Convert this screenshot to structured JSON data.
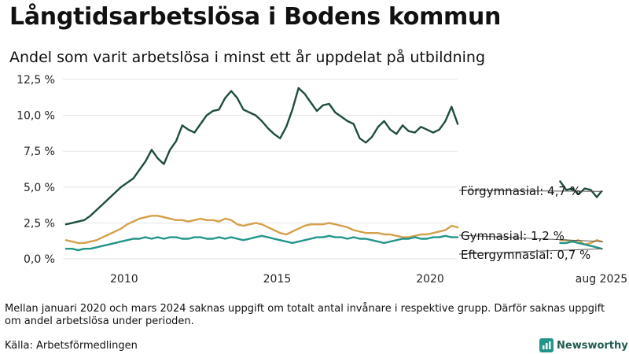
{
  "title": "Långtidsarbetslösa i Bodens kommun",
  "subtitle": "Andel som varit arbetslösa i minst ett år uppdelat på utbildning",
  "note": "Mellan januari 2020 och mars 2024 saknas uppgift om totalt antal invånare i respektive grupp. Därför saknas uppgift om andel arbetslösa under perioden.",
  "source": "Källa: Arbetsförmedlingen",
  "brand": "Newsworthy",
  "chart_data": {
    "type": "line",
    "title": "Långtidsarbetslösa i Bodens kommun",
    "ylabel": "",
    "ylim": [
      0,
      12.5
    ],
    "yticks": [
      0,
      2.5,
      5.0,
      7.5,
      10.0,
      12.5
    ],
    "ytick_labels": [
      "0,0 %",
      "2,5 %",
      "5,0 %",
      "7,5 %",
      "10,0 %",
      "12,5 %"
    ],
    "xticks": [
      2010,
      2015,
      2020,
      2025.6
    ],
    "xtick_labels": [
      "2010",
      "2015",
      "2020",
      "aug 2025"
    ],
    "xlim": [
      2008.0,
      2026.5
    ],
    "series": [
      {
        "name": "Förgymnasial",
        "color": "#1e4d40",
        "label": "Förgymnasial: 4,7 %",
        "segments": [
          {
            "x": [
              2008.1,
              2008.3,
              2008.5,
              2008.7,
              2008.9,
              2009.1,
              2009.3,
              2009.5,
              2009.7,
              2009.9,
              2010.1,
              2010.3,
              2010.5,
              2010.7,
              2010.9,
              2011.1,
              2011.3,
              2011.5,
              2011.7,
              2011.9,
              2012.1,
              2012.3,
              2012.5,
              2012.7,
              2012.9,
              2013.1,
              2013.3,
              2013.5,
              2013.7,
              2013.9,
              2014.1,
              2014.3,
              2014.5,
              2014.7,
              2014.9,
              2015.1,
              2015.3,
              2015.5,
              2015.7,
              2015.9,
              2016.1,
              2016.3,
              2016.5,
              2016.7,
              2016.9,
              2017.1,
              2017.3,
              2017.5,
              2017.7,
              2017.9,
              2018.1,
              2018.3,
              2018.5,
              2018.7,
              2018.9,
              2019.1,
              2019.3,
              2019.5,
              2019.7,
              2019.9,
              2020.1,
              2020.3,
              2020.5,
              2020.7,
              2020.9
            ],
            "y": [
              2.4,
              2.5,
              2.6,
              2.7,
              3.0,
              3.4,
              3.8,
              4.2,
              4.6,
              5.0,
              5.3,
              5.6,
              6.2,
              6.8,
              7.6,
              7.0,
              6.6,
              7.6,
              8.2,
              9.3,
              9.0,
              8.8,
              9.4,
              10.0,
              10.3,
              10.4,
              11.2,
              11.7,
              11.2,
              10.4,
              10.2,
              10.0,
              9.6,
              9.1,
              8.7,
              8.4,
              9.2,
              10.4,
              11.9,
              11.5,
              10.9,
              10.3,
              10.7,
              10.8,
              10.2,
              9.9,
              9.6,
              9.4,
              8.4,
              8.1,
              8.5,
              9.2,
              9.6,
              9.0,
              8.7,
              9.3,
              8.9,
              8.8,
              9.2,
              9.0,
              8.8,
              9.0,
              9.6,
              10.6,
              9.4
            ]
          },
          {
            "x": [
              2024.25,
              2024.45,
              2024.65,
              2024.85,
              2025.05,
              2025.25,
              2025.45,
              2025.6
            ],
            "y": [
              5.4,
              4.8,
              4.9,
              4.5,
              4.9,
              4.8,
              4.3,
              4.7
            ]
          }
        ]
      },
      {
        "name": "Gymnasial",
        "color": "#d4a04a",
        "label": "Gymnasial: 1,2 %",
        "segments": [
          {
            "x": [
              2008.1,
              2008.3,
              2008.5,
              2008.7,
              2008.9,
              2009.1,
              2009.3,
              2009.5,
              2009.7,
              2009.9,
              2010.1,
              2010.3,
              2010.5,
              2010.7,
              2010.9,
              2011.1,
              2011.3,
              2011.5,
              2011.7,
              2011.9,
              2012.1,
              2012.3,
              2012.5,
              2012.7,
              2012.9,
              2013.1,
              2013.3,
              2013.5,
              2013.7,
              2013.9,
              2014.1,
              2014.3,
              2014.5,
              2014.7,
              2014.9,
              2015.1,
              2015.3,
              2015.5,
              2015.7,
              2015.9,
              2016.1,
              2016.3,
              2016.5,
              2016.7,
              2016.9,
              2017.1,
              2017.3,
              2017.5,
              2017.7,
              2017.9,
              2018.1,
              2018.3,
              2018.5,
              2018.7,
              2018.9,
              2019.1,
              2019.3,
              2019.5,
              2019.7,
              2019.9,
              2020.1,
              2020.3,
              2020.5,
              2020.7,
              2020.9
            ],
            "y": [
              1.3,
              1.2,
              1.1,
              1.1,
              1.2,
              1.3,
              1.5,
              1.7,
              1.9,
              2.1,
              2.4,
              2.6,
              2.8,
              2.9,
              3.0,
              3.0,
              2.9,
              2.8,
              2.7,
              2.7,
              2.6,
              2.7,
              2.8,
              2.7,
              2.7,
              2.6,
              2.8,
              2.7,
              2.4,
              2.3,
              2.4,
              2.5,
              2.4,
              2.2,
              2.0,
              1.8,
              1.7,
              1.9,
              2.1,
              2.3,
              2.4,
              2.4,
              2.4,
              2.5,
              2.4,
              2.3,
              2.2,
              2.0,
              1.9,
              1.8,
              1.8,
              1.8,
              1.7,
              1.7,
              1.6,
              1.5,
              1.5,
              1.6,
              1.7,
              1.7,
              1.8,
              1.9,
              2.0,
              2.3,
              2.2
            ]
          },
          {
            "x": [
              2024.25,
              2024.45,
              2024.65,
              2024.85,
              2025.05,
              2025.25,
              2025.45,
              2025.6
            ],
            "y": [
              1.3,
              1.3,
              1.2,
              1.3,
              1.0,
              1.1,
              1.3,
              1.2
            ]
          }
        ]
      },
      {
        "name": "Eftergymnasial",
        "color": "#22958a",
        "label": "Eftergymnasial: 0,7 %",
        "segments": [
          {
            "x": [
              2008.1,
              2008.3,
              2008.5,
              2008.7,
              2008.9,
              2009.1,
              2009.3,
              2009.5,
              2009.7,
              2009.9,
              2010.1,
              2010.3,
              2010.5,
              2010.7,
              2010.9,
              2011.1,
              2011.3,
              2011.5,
              2011.7,
              2011.9,
              2012.1,
              2012.3,
              2012.5,
              2012.7,
              2012.9,
              2013.1,
              2013.3,
              2013.5,
              2013.7,
              2013.9,
              2014.1,
              2014.3,
              2014.5,
              2014.7,
              2014.9,
              2015.1,
              2015.3,
              2015.5,
              2015.7,
              2015.9,
              2016.1,
              2016.3,
              2016.5,
              2016.7,
              2016.9,
              2017.1,
              2017.3,
              2017.5,
              2017.7,
              2017.9,
              2018.1,
              2018.3,
              2018.5,
              2018.7,
              2018.9,
              2019.1,
              2019.3,
              2019.5,
              2019.7,
              2019.9,
              2020.1,
              2020.3,
              2020.5,
              2020.7,
              2020.9
            ],
            "y": [
              0.7,
              0.7,
              0.6,
              0.7,
              0.7,
              0.8,
              0.9,
              1.0,
              1.1,
              1.2,
              1.3,
              1.4,
              1.4,
              1.5,
              1.4,
              1.5,
              1.4,
              1.5,
              1.5,
              1.4,
              1.4,
              1.5,
              1.5,
              1.4,
              1.4,
              1.5,
              1.4,
              1.5,
              1.4,
              1.3,
              1.4,
              1.5,
              1.6,
              1.5,
              1.4,
              1.3,
              1.2,
              1.1,
              1.2,
              1.3,
              1.4,
              1.5,
              1.5,
              1.6,
              1.5,
              1.5,
              1.4,
              1.5,
              1.4,
              1.4,
              1.3,
              1.2,
              1.1,
              1.2,
              1.3,
              1.4,
              1.4,
              1.5,
              1.4,
              1.4,
              1.5,
              1.5,
              1.6,
              1.5,
              1.5
            ]
          },
          {
            "x": [
              2024.25,
              2024.45,
              2024.65,
              2024.85,
              2025.05,
              2025.25,
              2025.45,
              2025.6
            ],
            "y": [
              1.1,
              1.1,
              1.2,
              1.1,
              1.0,
              0.9,
              0.8,
              0.7
            ]
          }
        ]
      }
    ]
  }
}
